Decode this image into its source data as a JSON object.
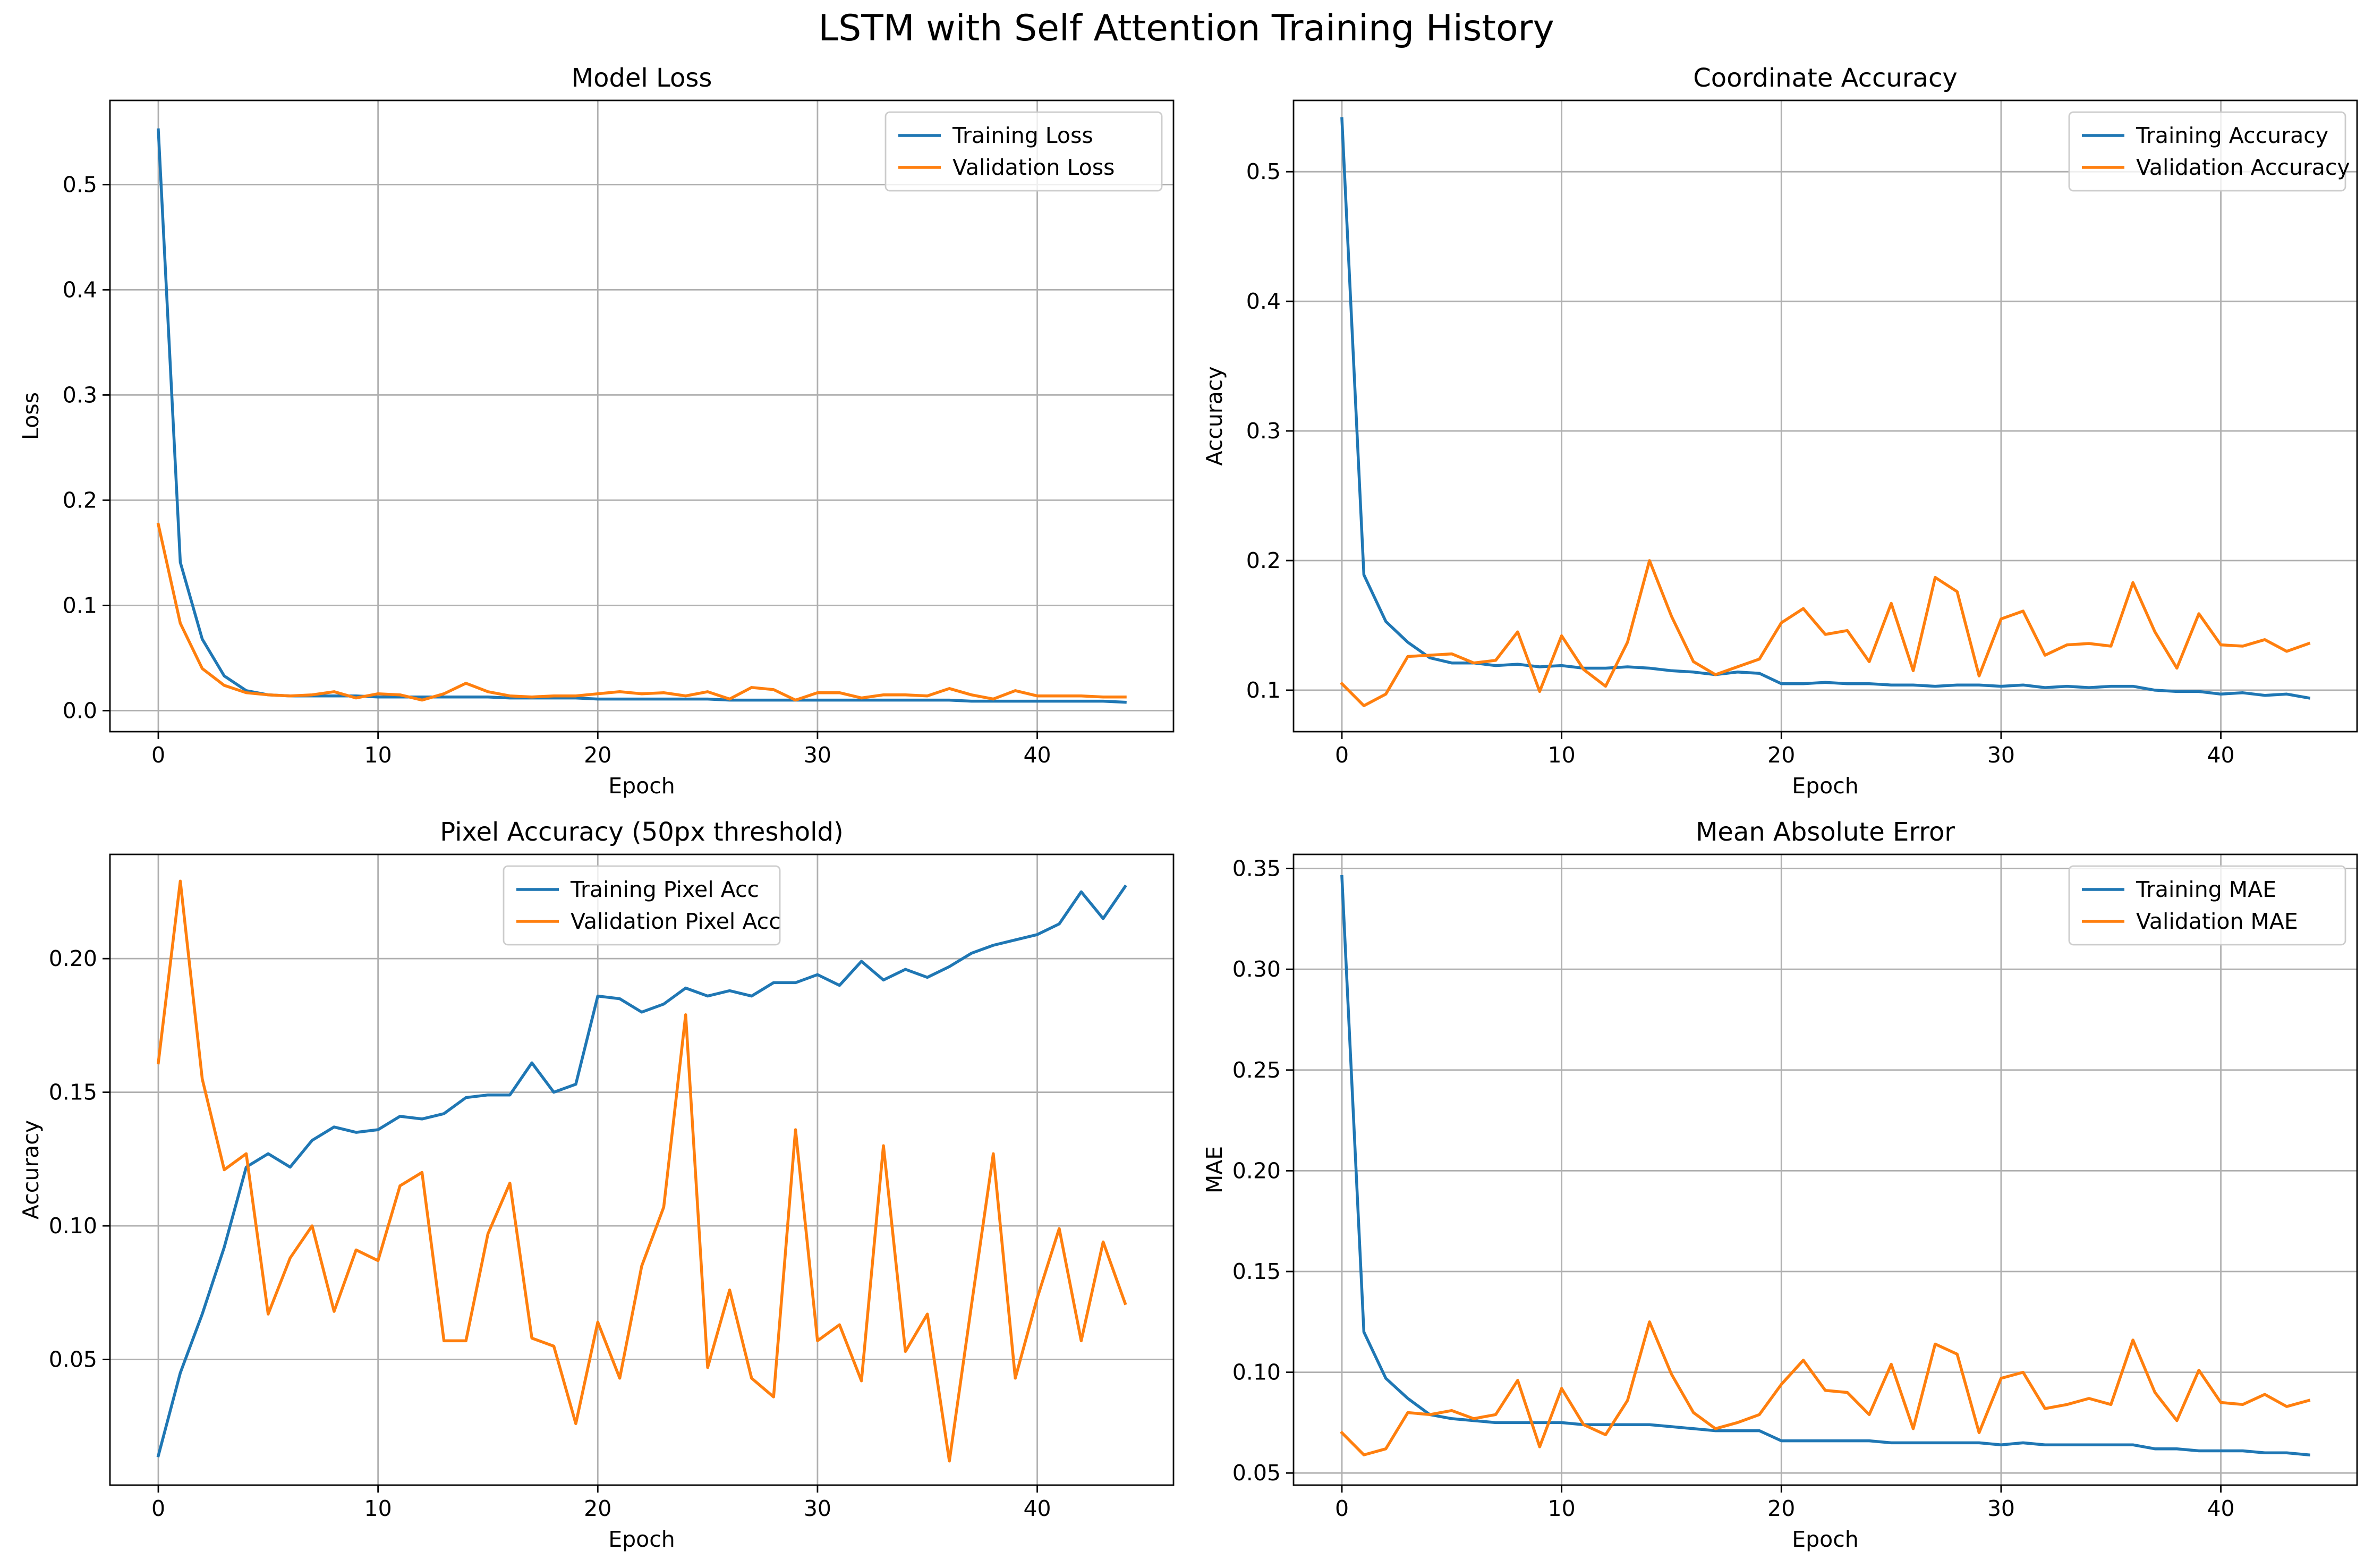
{
  "suptitle": "LSTM with Self Attention Training History",
  "colors": {
    "training": "#1f77b4",
    "validation": "#ff7f0e"
  },
  "chart_data": [
    {
      "type": "line",
      "title": "Model Loss",
      "xlabel": "Epoch",
      "ylabel": "Loss",
      "xlim": [
        -2.2,
        46.2
      ],
      "ylim": [
        -0.02,
        0.58
      ],
      "xticks": [
        0,
        10,
        20,
        30,
        40
      ],
      "yticks": [
        0.0,
        0.1,
        0.2,
        0.3,
        0.4,
        0.5
      ],
      "ytick_labels": [
        "0.0",
        "0.1",
        "0.2",
        "0.3",
        "0.4",
        "0.5"
      ],
      "grid": true,
      "legend_position": "upper-right",
      "series": [
        {
          "name": "Training Loss",
          "color": "#1f77b4",
          "values": [
            0.552,
            0.141,
            0.068,
            0.033,
            0.019,
            0.015,
            0.014,
            0.014,
            0.014,
            0.014,
            0.013,
            0.013,
            0.013,
            0.013,
            0.013,
            0.013,
            0.012,
            0.012,
            0.012,
            0.012,
            0.011,
            0.011,
            0.011,
            0.011,
            0.011,
            0.011,
            0.01,
            0.01,
            0.01,
            0.01,
            0.01,
            0.01,
            0.01,
            0.01,
            0.01,
            0.01,
            0.01,
            0.009,
            0.009,
            0.009,
            0.009,
            0.009,
            0.009,
            0.009,
            0.008
          ]
        },
        {
          "name": "Validation Loss",
          "color": "#ff7f0e",
          "values": [
            0.177,
            0.083,
            0.04,
            0.024,
            0.017,
            0.015,
            0.014,
            0.015,
            0.018,
            0.012,
            0.016,
            0.015,
            0.01,
            0.016,
            0.026,
            0.018,
            0.014,
            0.013,
            0.014,
            0.014,
            0.016,
            0.018,
            0.016,
            0.017,
            0.014,
            0.018,
            0.011,
            0.022,
            0.02,
            0.01,
            0.017,
            0.017,
            0.012,
            0.015,
            0.015,
            0.014,
            0.021,
            0.015,
            0.011,
            0.019,
            0.014,
            0.014,
            0.014,
            0.013,
            0.013
          ]
        }
      ]
    },
    {
      "type": "line",
      "title": "Coordinate Accuracy",
      "xlabel": "Epoch",
      "ylabel": "Accuracy",
      "xlim": [
        -2.2,
        46.2
      ],
      "ylim": [
        0.068,
        0.555
      ],
      "xticks": [
        0,
        10,
        20,
        30,
        40
      ],
      "yticks": [
        0.1,
        0.2,
        0.3,
        0.4,
        0.5
      ],
      "ytick_labels": [
        "0.1",
        "0.2",
        "0.3",
        "0.4",
        "0.5"
      ],
      "grid": true,
      "legend_position": "upper-right",
      "series": [
        {
          "name": "Training Accuracy",
          "color": "#1f77b4",
          "values": [
            0.541,
            0.189,
            0.153,
            0.137,
            0.125,
            0.121,
            0.121,
            0.119,
            0.12,
            0.118,
            0.119,
            0.117,
            0.117,
            0.118,
            0.117,
            0.115,
            0.114,
            0.112,
            0.114,
            0.113,
            0.105,
            0.105,
            0.106,
            0.105,
            0.105,
            0.104,
            0.104,
            0.103,
            0.104,
            0.104,
            0.103,
            0.104,
            0.102,
            0.103,
            0.102,
            0.103,
            0.103,
            0.1,
            0.099,
            0.099,
            0.097,
            0.098,
            0.096,
            0.097,
            0.094
          ]
        },
        {
          "name": "Validation Accuracy",
          "color": "#ff7f0e",
          "values": [
            0.105,
            0.088,
            0.097,
            0.126,
            0.127,
            0.128,
            0.121,
            0.123,
            0.145,
            0.099,
            0.142,
            0.116,
            0.103,
            0.137,
            0.2,
            0.157,
            0.122,
            0.112,
            0.118,
            0.124,
            0.152,
            0.163,
            0.143,
            0.146,
            0.122,
            0.167,
            0.115,
            0.187,
            0.176,
            0.111,
            0.155,
            0.161,
            0.127,
            0.135,
            0.136,
            0.134,
            0.183,
            0.145,
            0.117,
            0.159,
            0.135,
            0.134,
            0.139,
            0.13,
            0.136
          ]
        }
      ]
    },
    {
      "type": "line",
      "title": "Pixel Accuracy (50px threshold)",
      "xlabel": "Epoch",
      "ylabel": "Accuracy",
      "xlim": [
        -2.2,
        46.2
      ],
      "ylim": [
        0.003,
        0.239
      ],
      "xticks": [
        0,
        10,
        20,
        30,
        40
      ],
      "yticks": [
        0.05,
        0.1,
        0.15,
        0.2
      ],
      "ytick_labels": [
        "0.05",
        "0.10",
        "0.15",
        "0.20"
      ],
      "grid": true,
      "legend_position": "upper-center",
      "series": [
        {
          "name": "Training Pixel Acc",
          "color": "#1f77b4",
          "values": [
            0.014,
            0.045,
            0.067,
            0.092,
            0.122,
            0.127,
            0.122,
            0.132,
            0.137,
            0.135,
            0.136,
            0.141,
            0.14,
            0.142,
            0.148,
            0.149,
            0.149,
            0.161,
            0.15,
            0.153,
            0.186,
            0.185,
            0.18,
            0.183,
            0.189,
            0.186,
            0.188,
            0.186,
            0.191,
            0.191,
            0.194,
            0.19,
            0.199,
            0.192,
            0.196,
            0.193,
            0.197,
            0.202,
            0.205,
            0.207,
            0.209,
            0.213,
            0.225,
            0.215,
            0.227
          ]
        },
        {
          "name": "Validation Pixel Acc",
          "color": "#ff7f0e",
          "values": [
            0.161,
            0.229,
            0.155,
            0.121,
            0.127,
            0.067,
            0.088,
            0.1,
            0.068,
            0.091,
            0.087,
            0.115,
            0.12,
            0.057,
            0.057,
            0.097,
            0.116,
            0.058,
            0.055,
            0.026,
            0.064,
            0.043,
            0.085,
            0.107,
            0.179,
            0.047,
            0.076,
            0.043,
            0.036,
            0.136,
            0.057,
            0.063,
            0.042,
            0.13,
            0.053,
            0.067,
            0.012,
            0.07,
            0.127,
            0.043,
            0.073,
            0.099,
            0.057,
            0.094,
            0.071
          ]
        }
      ]
    },
    {
      "type": "line",
      "title": "Mean Absolute Error",
      "xlabel": "Epoch",
      "ylabel": "MAE",
      "xlim": [
        -2.2,
        46.2
      ],
      "ylim": [
        0.044,
        0.357
      ],
      "xticks": [
        0,
        10,
        20,
        30,
        40
      ],
      "yticks": [
        0.05,
        0.1,
        0.15,
        0.2,
        0.25,
        0.3,
        0.35
      ],
      "ytick_labels": [
        "0.05",
        "0.10",
        "0.15",
        "0.20",
        "0.25",
        "0.30",
        "0.35"
      ],
      "grid": true,
      "legend_position": "upper-right",
      "series": [
        {
          "name": "Training MAE",
          "color": "#1f77b4",
          "values": [
            0.346,
            0.12,
            0.097,
            0.087,
            0.079,
            0.077,
            0.076,
            0.075,
            0.075,
            0.075,
            0.075,
            0.074,
            0.074,
            0.074,
            0.074,
            0.073,
            0.072,
            0.071,
            0.071,
            0.071,
            0.066,
            0.066,
            0.066,
            0.066,
            0.066,
            0.065,
            0.065,
            0.065,
            0.065,
            0.065,
            0.064,
            0.065,
            0.064,
            0.064,
            0.064,
            0.064,
            0.064,
            0.062,
            0.062,
            0.061,
            0.061,
            0.061,
            0.06,
            0.06,
            0.059
          ]
        },
        {
          "name": "Validation MAE",
          "color": "#ff7f0e",
          "values": [
            0.07,
            0.059,
            0.062,
            0.08,
            0.079,
            0.081,
            0.077,
            0.079,
            0.096,
            0.063,
            0.092,
            0.074,
            0.069,
            0.086,
            0.125,
            0.099,
            0.08,
            0.072,
            0.075,
            0.079,
            0.094,
            0.106,
            0.091,
            0.09,
            0.079,
            0.104,
            0.072,
            0.114,
            0.109,
            0.07,
            0.097,
            0.1,
            0.082,
            0.084,
            0.087,
            0.084,
            0.116,
            0.09,
            0.076,
            0.101,
            0.085,
            0.084,
            0.089,
            0.083,
            0.086
          ]
        }
      ]
    }
  ]
}
